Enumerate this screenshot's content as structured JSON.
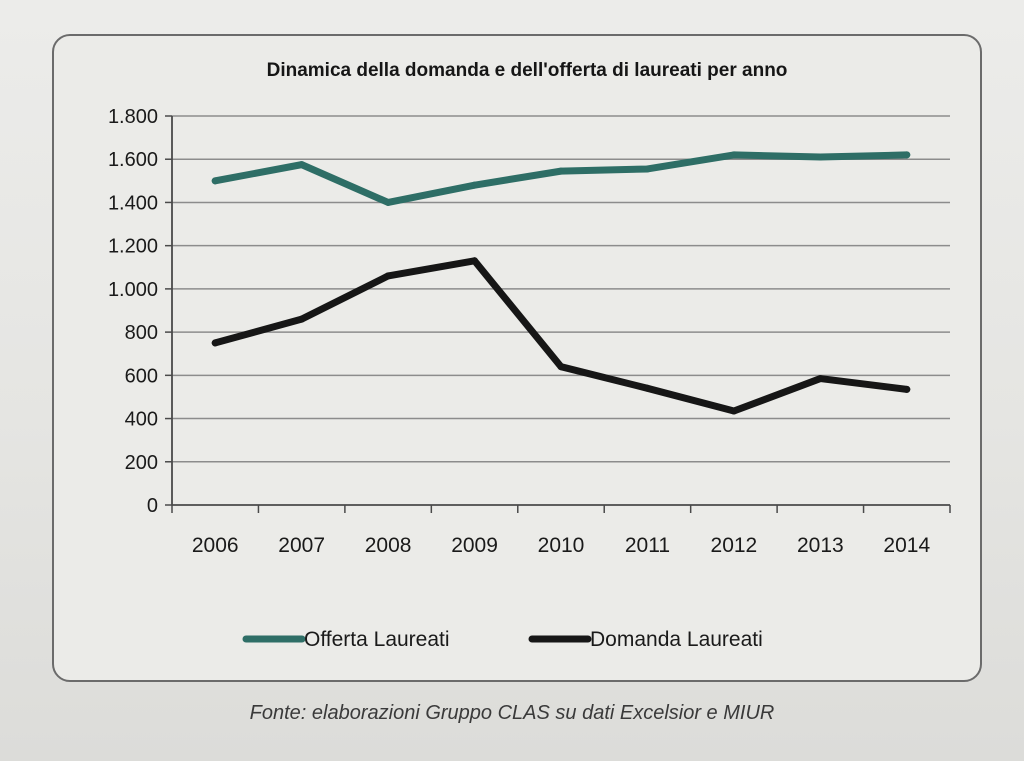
{
  "chart_data": {
    "type": "line",
    "title": "Dinamica della domanda e dell'offerta di laureati per anno",
    "categories": [
      "2006",
      "2007",
      "2008",
      "2009",
      "2010",
      "2011",
      "2012",
      "2013",
      "2014"
    ],
    "series": [
      {
        "name": "Offerta Laureati",
        "color": "#2e6e66",
        "values": [
          1500,
          1575,
          1400,
          1480,
          1545,
          1555,
          1620,
          1610,
          1620
        ]
      },
      {
        "name": "Domanda Laureati",
        "color": "#161616",
        "values": [
          750,
          860,
          1060,
          1130,
          640,
          540,
          435,
          585,
          535
        ]
      }
    ],
    "ylim": [
      0,
      1800
    ],
    "yticks": [
      0,
      200,
      400,
      600,
      800,
      1000,
      1200,
      1400,
      1600,
      1800
    ],
    "ytick_labels": [
      "0",
      "200",
      "400",
      "600",
      "800",
      "1.000",
      "1.200",
      "1.400",
      "1.600",
      "1.800"
    ],
    "xlabel": "",
    "ylabel": "",
    "grid": true,
    "legend_position": "bottom"
  },
  "caption": "Fonte:  elaborazioni Gruppo CLAS su dati Excelsior e MIUR"
}
